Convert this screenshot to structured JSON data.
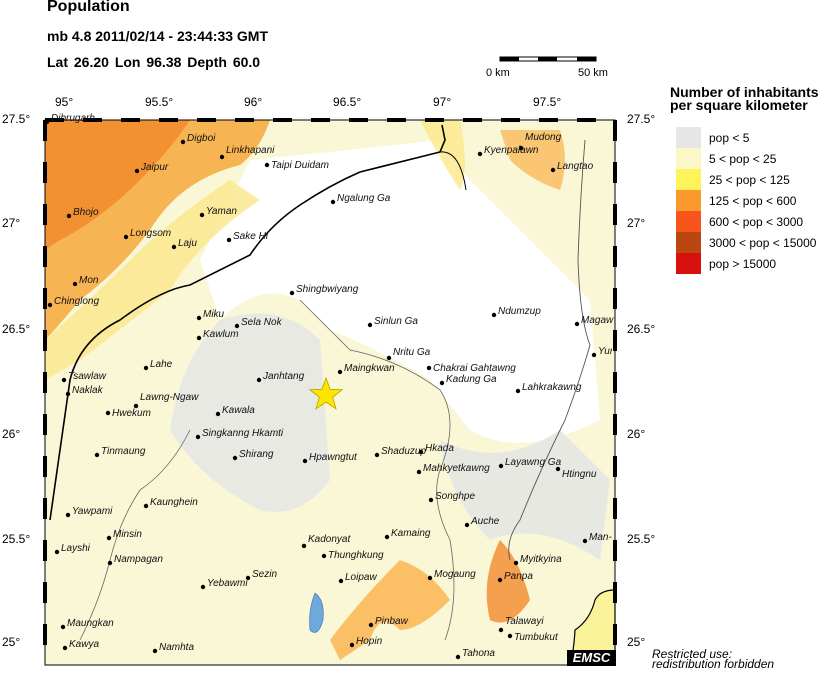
{
  "header": {
    "title": "Population",
    "event": "mb 4.8  2011/02/14 - 23:44:33 GMT",
    "location": "Lat 26.20    Lon  96.38     Depth  60.0"
  },
  "scale_bar": {
    "start": "0 km",
    "end": "50 km"
  },
  "axes": {
    "lon_ticks": [
      "95°",
      "95.5°",
      "96°",
      "96.5°",
      "97°",
      "97.5°"
    ],
    "lat_ticks": [
      "27.5°",
      "27°",
      "26.5°",
      "26°",
      "25.5°",
      "25°"
    ]
  },
  "epicenter": {
    "lat": 26.2,
    "lon": 96.38,
    "icon": "star-icon",
    "color": "#ffe600"
  },
  "cities": [
    "Dibrugarh",
    "Digboi",
    "Jaipur",
    "Linkhapani",
    "Taipi Duidam",
    "Yaman",
    "Bhojo",
    "Longsom",
    "Laju",
    "Sake Hi",
    "Mon",
    "Chinglong",
    "Shingbwiyang",
    "Ngalung Ga",
    "Kyenpalawn",
    "Mudong",
    "Langtao",
    "Miku",
    "Sela Nok",
    "Kawlum",
    "Sinlun Ga",
    "Ndumzup",
    "Magaw",
    "Yun",
    "Nritu Ga",
    "Chakrai Gahtawng",
    "Maingkwan",
    "Kadung Ga",
    "Lahkrakawng",
    "Lahe",
    "Tsawlaw",
    "Naklak",
    "Lawng-Ngaw",
    "Hwekum",
    "Kawala",
    "Janhtang",
    "Singkanng Hkamti",
    "Tinmaung",
    "Shirang",
    "Hpawngtut",
    "Shaduzup",
    "Hkada",
    "Mahkyetkawng",
    "Layawng Ga",
    "Htingnu",
    "Songhpe",
    "Yawpami",
    "Kaunghein",
    "Auche",
    "Minsin",
    "Kamaing",
    "Kadonyat",
    "Thunghkung",
    "Layshi",
    "Man-l",
    "Nampagan",
    "Myitkyina",
    "Sezin",
    "Loipaw",
    "Mogaung",
    "Panpa",
    "Yebawmi",
    "Pinbaw",
    "Talawayi",
    "Tumbukut",
    "Maungkan",
    "Kawya",
    "Namhta",
    "Hopin",
    "Tahona"
  ],
  "legend": {
    "title1": "Number of inhabitants",
    "title2": "per square kilometer",
    "items": [
      {
        "label": "pop < 5",
        "color": "#e6e6e6"
      },
      {
        "label": "5 < pop < 25",
        "color": "#fbf8c8"
      },
      {
        "label": "25 < pop < 125",
        "color": "#fff35a"
      },
      {
        "label": "125 < pop < 600",
        "color": "#fb9a2c"
      },
      {
        "label": "600 < pop < 3000",
        "color": "#f6561b"
      },
      {
        "label": "3000 < pop < 15000",
        "color": "#b9470f"
      },
      {
        "label": "pop > 15000",
        "color": "#d81010"
      }
    ]
  },
  "credit": "EMSC",
  "notice1": "Restricted use:",
  "notice2": "redistribution forbidden"
}
